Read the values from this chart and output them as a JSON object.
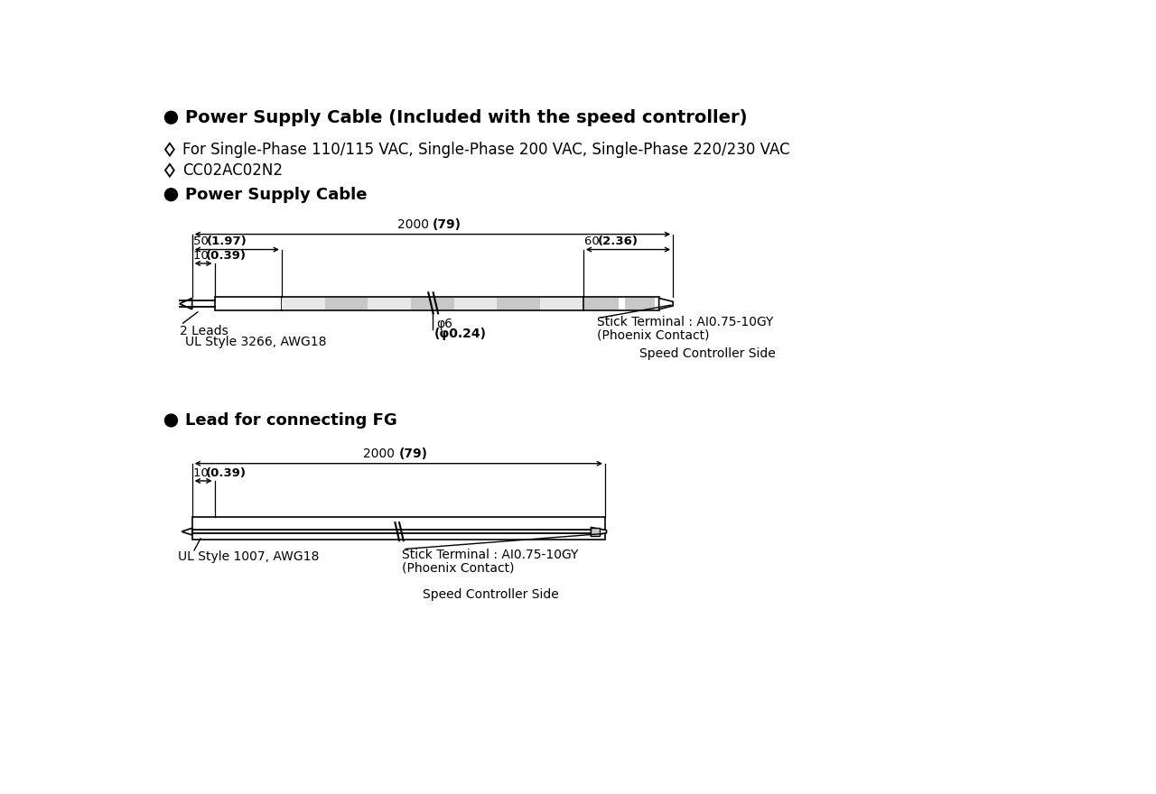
{
  "bg_color": "#ffffff",
  "lc": "#000000",
  "gray": "#c8c8c8",
  "header": "Power Supply Cable (Included with the speed controller)",
  "d1_line1": "For Single-Phase 110/115 VAC, Single-Phase 200 VAC, Single-Phase 220/230 VAC",
  "d1_line2": "CC02AC02N2",
  "sec1": "Power Supply Cable",
  "sec2": "Lead for connecting FG",
  "diag1": {
    "total": "2000 (79)",
    "dim50": "50 (1.97)",
    "dim10": "10 (0.39)",
    "dim60": "60 (2.36)",
    "leads": "2 Leads",
    "ul": "UL Style 3266, AWG18",
    "phi": "φ6",
    "phi_in": "(φ0.24)",
    "stick": "Stick Terminal : AI0.75-10GY",
    "phoenix": "(Phoenix Contact)",
    "speed": "Speed Controller Side"
  },
  "diag2": {
    "total": "2000 (79)",
    "dim10": "10 (0.39)",
    "ul": "UL Style 1007, AWG18",
    "stick": "Stick Terminal : AI0.75-10GY",
    "phoenix": "(Phoenix Contact)",
    "speed": "Speed Controller Side"
  }
}
